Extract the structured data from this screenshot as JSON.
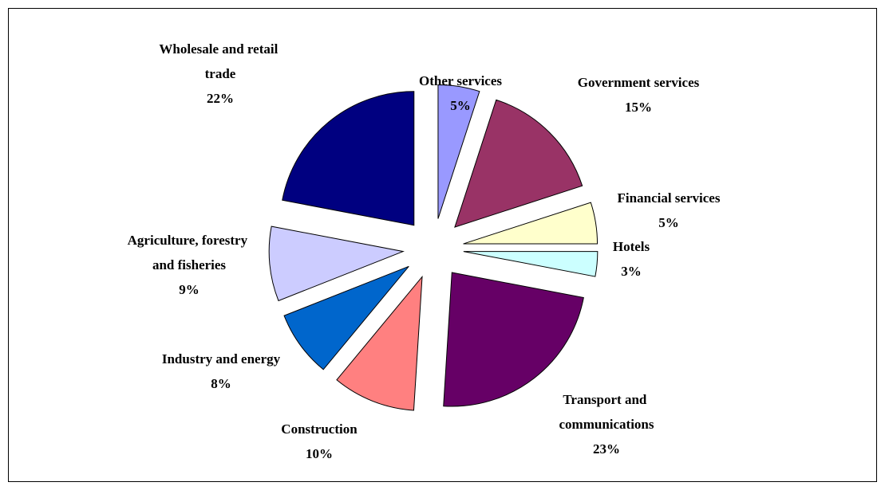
{
  "chart_data": {
    "type": "pie",
    "categories": [
      "Other services",
      "Government services",
      "Financial services",
      "Hotels",
      "Transport and communications",
      "Construction",
      "Industry and energy",
      "Agriculture, forestry and fisheries",
      "Wholesale and retail trade"
    ],
    "values": [
      5,
      15,
      5,
      3,
      23,
      10,
      8,
      9,
      22
    ],
    "value_labels": [
      "5%",
      "15%",
      "5%",
      "3%",
      "23%",
      "10%",
      "8%",
      "9%",
      "22%"
    ],
    "colors": [
      "#9999ff",
      "#993366",
      "#ffffcc",
      "#ccffff",
      "#660066",
      "#ff8080",
      "#0066cc",
      "#ccccff",
      "#000080"
    ]
  }
}
